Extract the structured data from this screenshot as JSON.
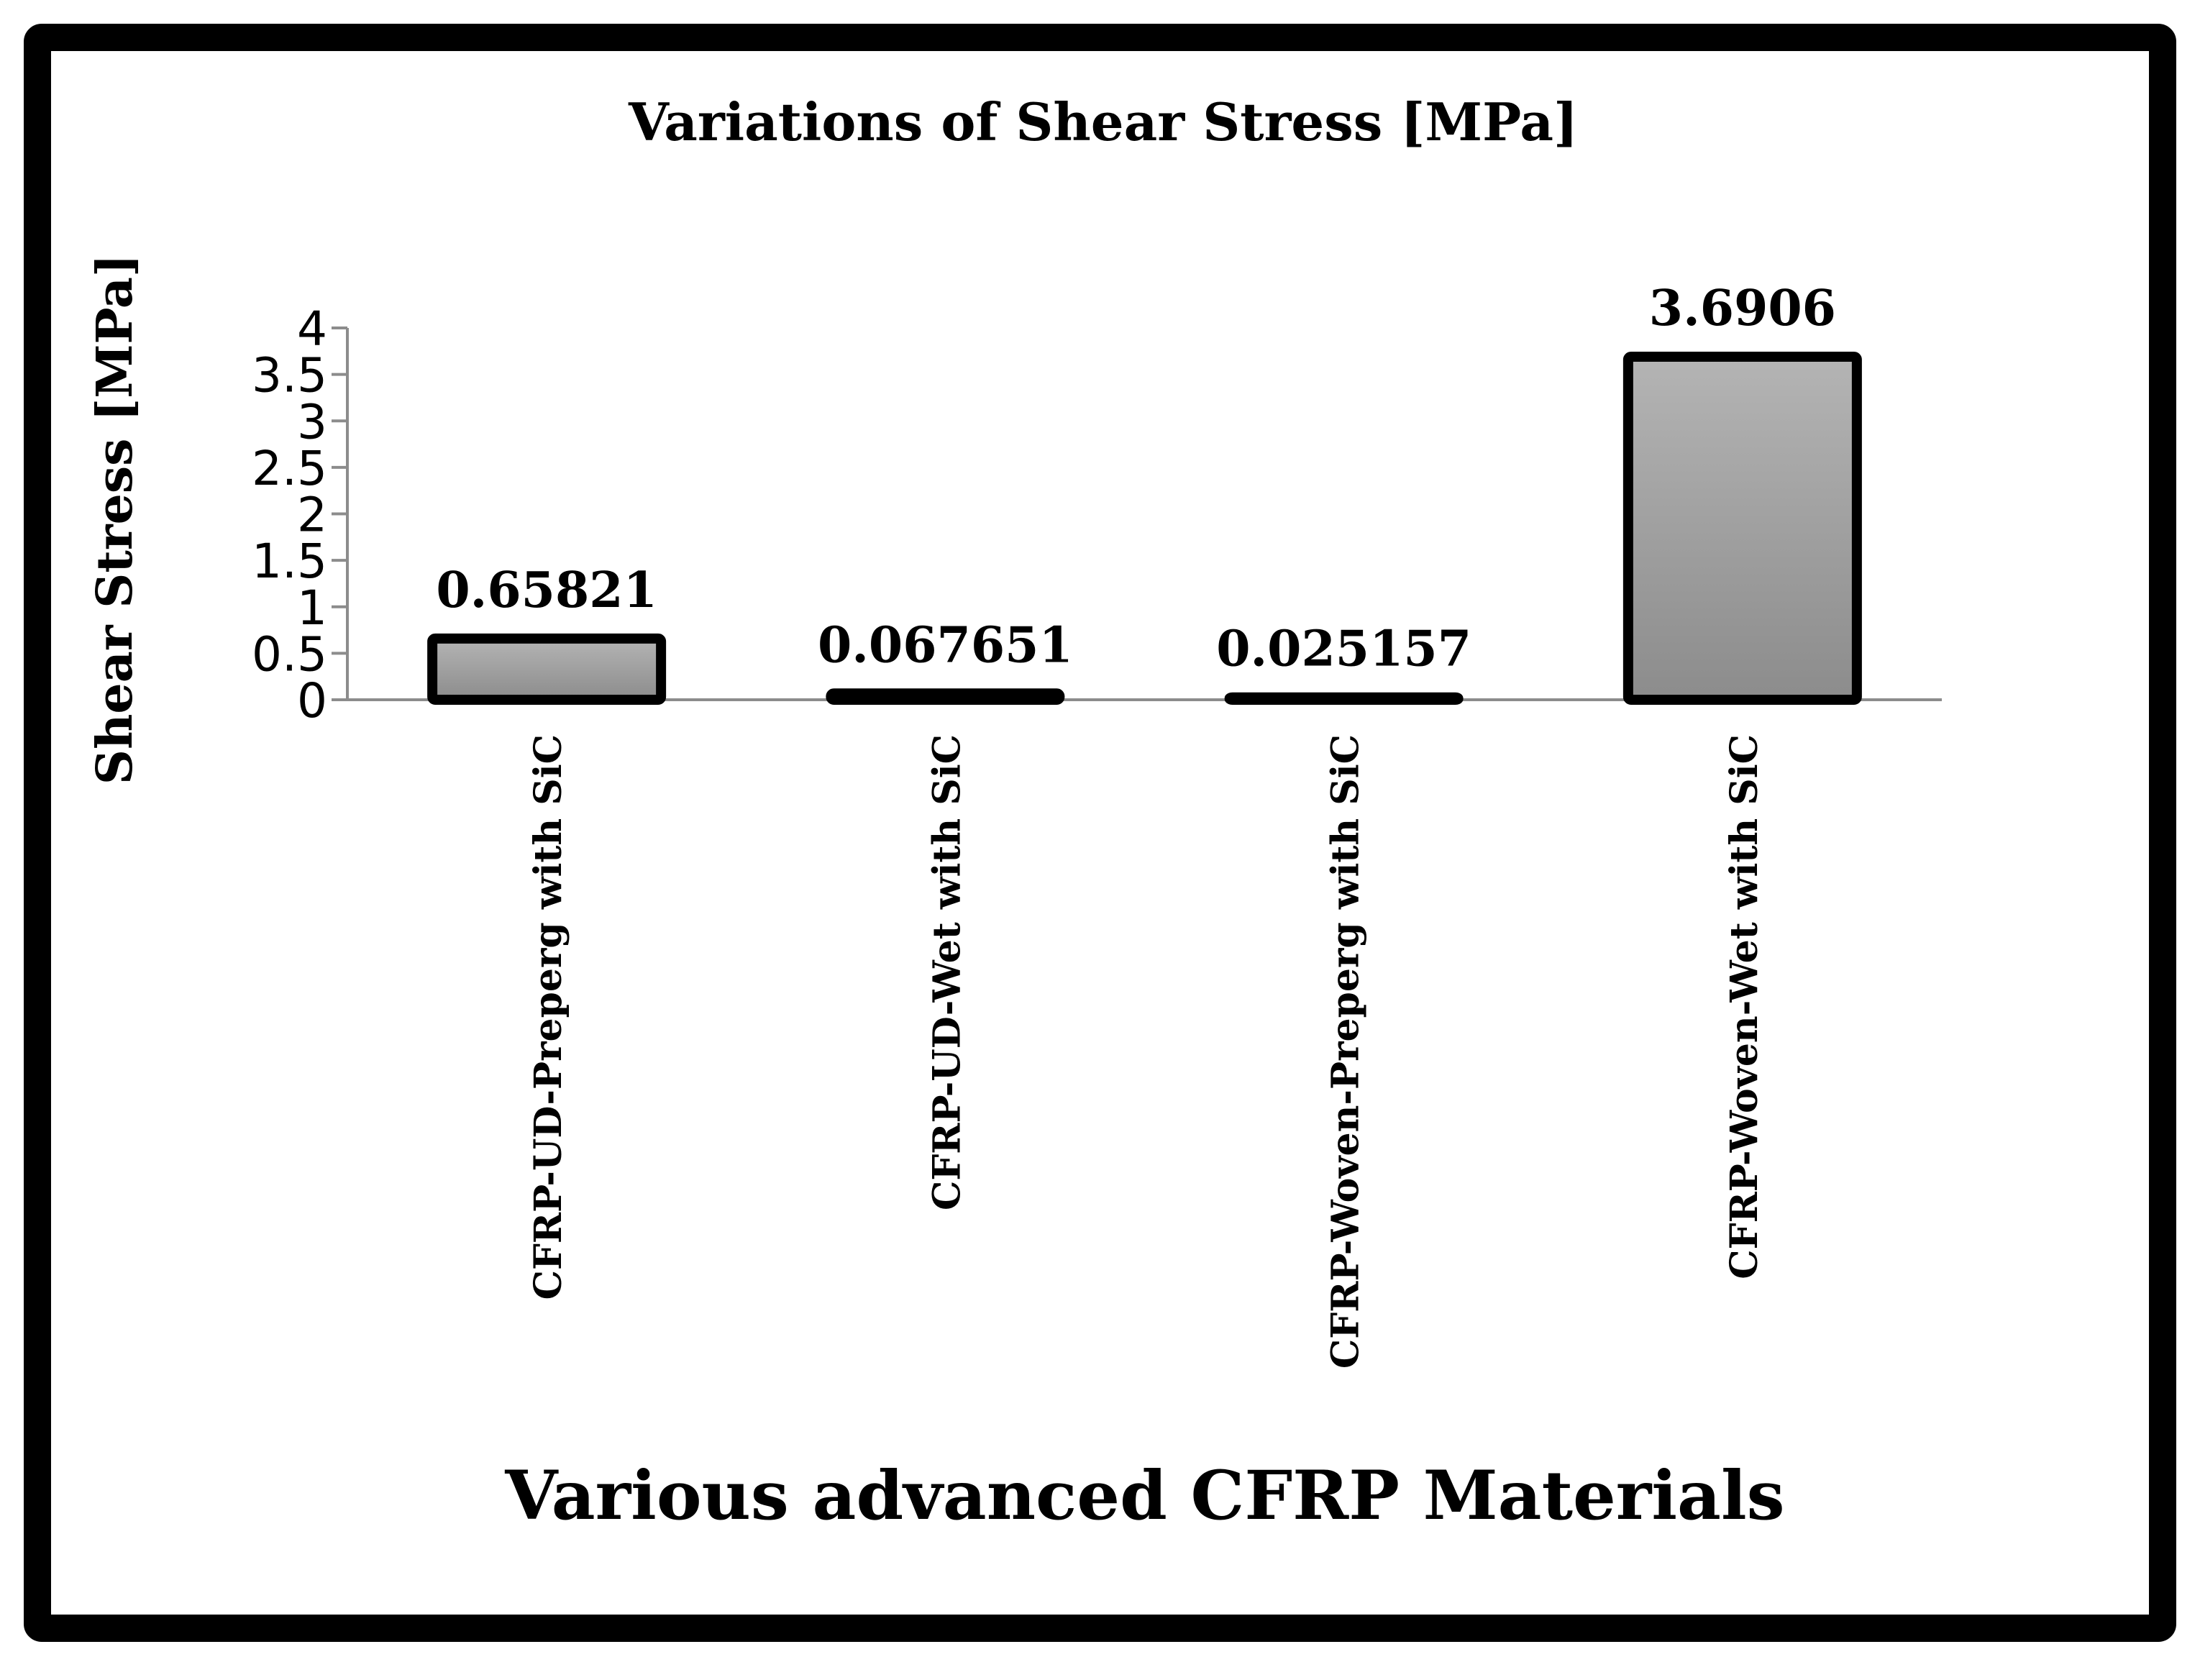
{
  "chart_data": {
    "type": "bar",
    "title": "Variations of Shear Stress [MPa]",
    "xlabel": "Various advanced CFRP Materials",
    "ylabel": "Shear Stress [MPa]",
    "categories": [
      "CFRP-UD-Preperg with SiC",
      "CFRP-UD-Wet with SiC",
      "CFRP-Woven-Preperg with SiC",
      "CFRP-Woven-Wet with SiC"
    ],
    "values": [
      0.65821,
      0.067651,
      0.025157,
      3.6906
    ],
    "data_labels": [
      "0.65821",
      "0.067651",
      "0.025157",
      "3.6906"
    ],
    "ylim": [
      0,
      4
    ],
    "yticks": [
      0,
      0.5,
      1,
      1.5,
      2,
      2.5,
      3,
      3.5,
      4
    ],
    "ytick_labels": [
      "0",
      "0.5",
      "1",
      "1.5",
      "2",
      "2.5",
      "3",
      "3.5",
      "4"
    ],
    "grid": false,
    "legend": "none",
    "bar_fill_top": "#b4b4b4",
    "bar_fill_bottom": "#8c8c8c",
    "bar_stroke": "#000000",
    "axis_color": "#8c8c8c",
    "frame_color": "#000000"
  }
}
